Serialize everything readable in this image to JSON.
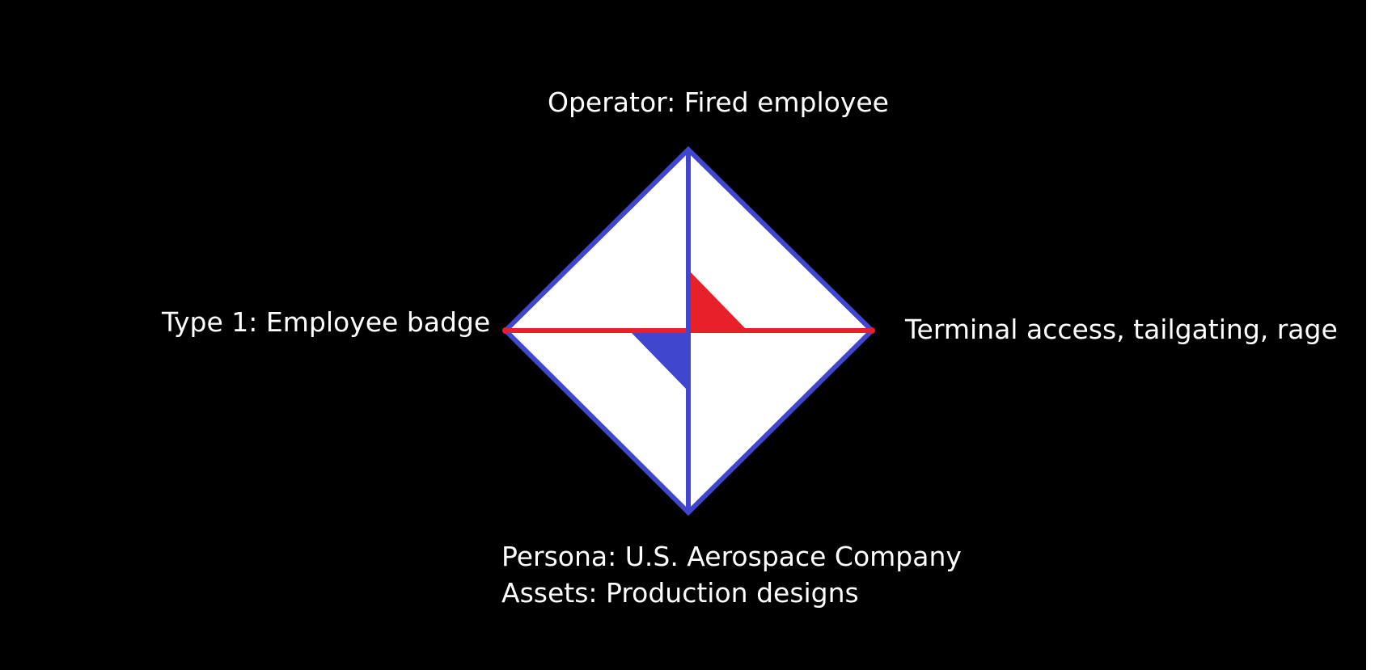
{
  "diagram": {
    "vertices": {
      "top": "Operator: Fired employee",
      "left": "Type 1: Employee badge",
      "right": "Terminal access, tailgating, rage",
      "bottom": [
        "Persona: U.S. Aerospace Company",
        "Assets: Production designs"
      ]
    }
  },
  "colors": {
    "background": "#000000",
    "diamond_fill": "#ffffff",
    "blue": "#4146cf",
    "red": "#e8202a",
    "text": "#ffffff"
  }
}
